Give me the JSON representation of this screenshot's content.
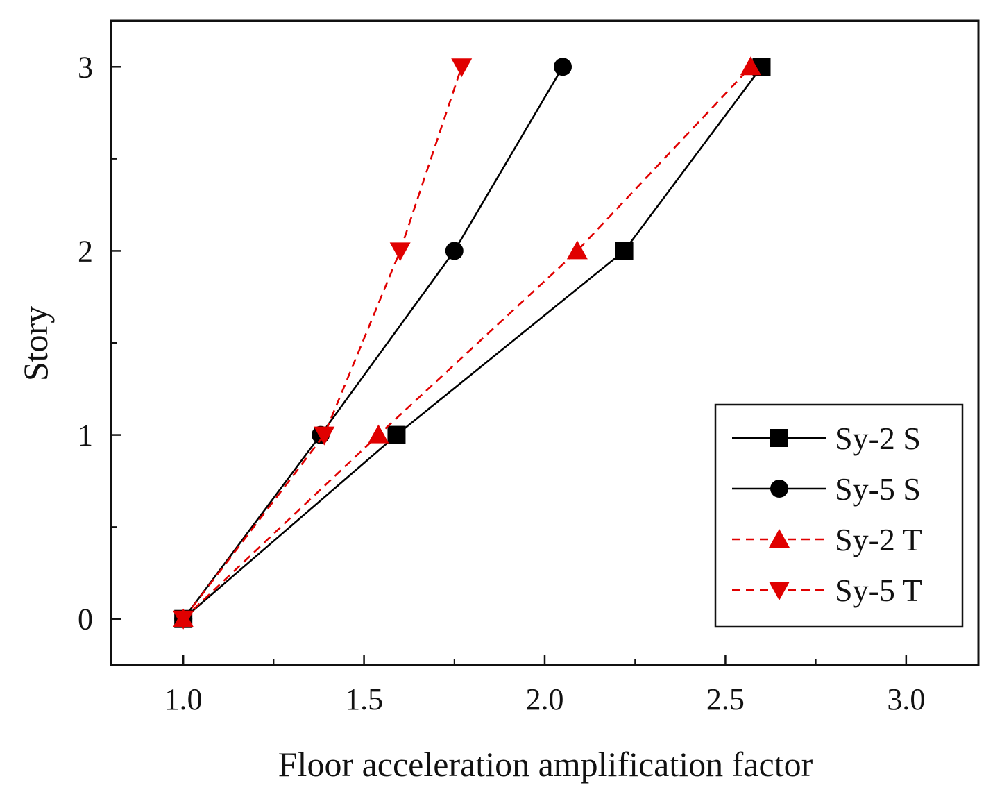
{
  "chart_data": {
    "type": "line",
    "title": "",
    "xlabel": "Floor acceleration amplification factor",
    "ylabel": "Story",
    "xlim": [
      0.8,
      3.2
    ],
    "ylim": [
      -0.25,
      3.25
    ],
    "x_ticks": [
      "1.0",
      "1.5",
      "2.0",
      "2.5",
      "3.0"
    ],
    "y_ticks": [
      "0",
      "1",
      "2",
      "3"
    ],
    "grid": false,
    "legend_position": "bottom-right",
    "series": [
      {
        "name": "Sy-2 S",
        "color": "#000000",
        "line_style": "solid",
        "marker": "square",
        "points": [
          [
            1.0,
            0
          ],
          [
            1.59,
            1
          ],
          [
            2.22,
            2
          ],
          [
            2.6,
            3
          ]
        ]
      },
      {
        "name": "Sy-5 S",
        "color": "#000000",
        "line_style": "solid",
        "marker": "circle",
        "points": [
          [
            1.0,
            0
          ],
          [
            1.38,
            1
          ],
          [
            1.75,
            2
          ],
          [
            2.05,
            3
          ]
        ]
      },
      {
        "name": "Sy-2 T",
        "color": "#e00000",
        "line_style": "dashed",
        "marker": "triangle-up",
        "points": [
          [
            1.0,
            0
          ],
          [
            1.54,
            1
          ],
          [
            2.09,
            2
          ],
          [
            2.57,
            3
          ]
        ]
      },
      {
        "name": "Sy-5 T",
        "color": "#e00000",
        "line_style": "dashed",
        "marker": "triangle-down",
        "points": [
          [
            1.0,
            0
          ],
          [
            1.39,
            1
          ],
          [
            1.6,
            2
          ],
          [
            1.77,
            3
          ]
        ]
      }
    ]
  }
}
